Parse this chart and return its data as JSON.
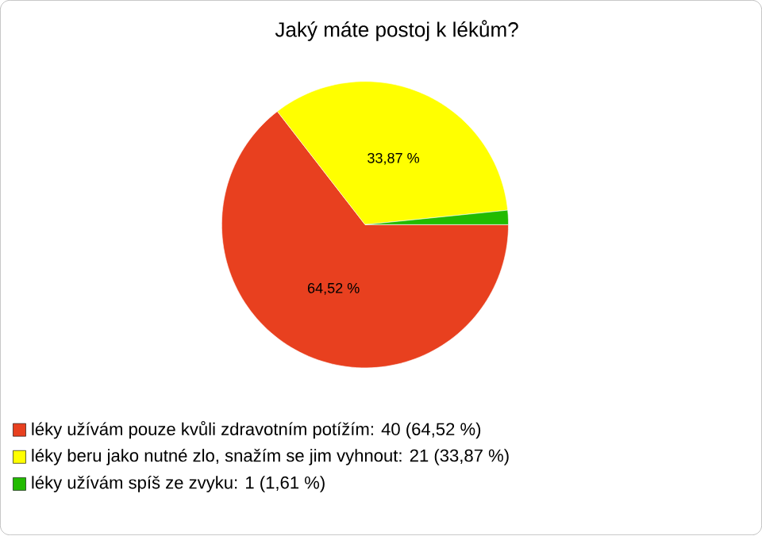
{
  "chart_data": {
    "type": "pie",
    "title": "Jaký máte postoj k lékům?",
    "categories": [
      "léky užívám pouze kvůli zdravotním potížím: 40 (64,52 %)",
      "léky beru jako nutné zlo, snažím se jim vyhnout: 21 (33,87 %)",
      "léky užívám spíš ze zvyku: 1 (1,61 %)"
    ],
    "values": [
      64.52,
      33.87,
      1.61
    ],
    "colors": [
      "#e8401f",
      "#ffff00",
      "#22bb00"
    ],
    "value_labels": [
      "64,52 %",
      "33,87 %",
      null
    ],
    "legend": "bottom left"
  }
}
